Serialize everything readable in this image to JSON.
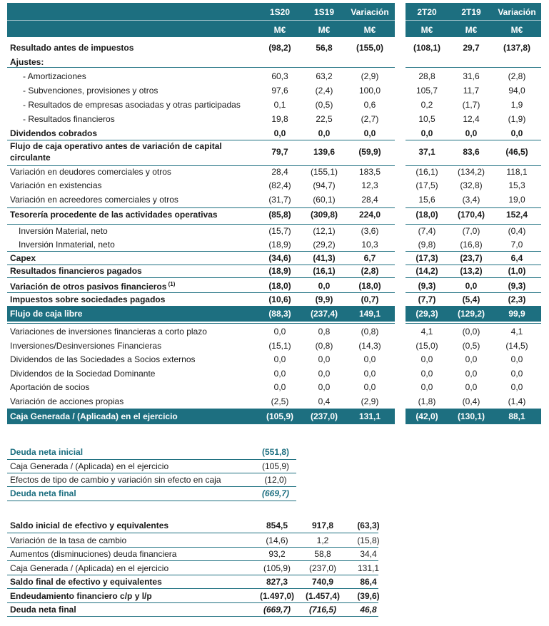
{
  "header": {
    "left_cols": [
      "1S20",
      "1S19",
      "Variación"
    ],
    "right_cols": [
      "2T20",
      "2T19",
      "Variación"
    ],
    "unit": "M€"
  },
  "main_rows": [
    {
      "label": "Resultado antes de impuestos",
      "bold": true,
      "v": [
        "(98,2)",
        "56,8",
        "(155,0)",
        "(108,1)",
        "29,7",
        "(137,8)"
      ]
    },
    {
      "label": "Ajustes:",
      "bold": true,
      "v": [
        "",
        "",
        "",
        "",
        "",
        ""
      ]
    },
    {
      "label": "- Amortizaciones",
      "v": [
        "60,3",
        "63,2",
        "(2,9)",
        "28,8",
        "31,6",
        "(2,8)"
      ]
    },
    {
      "label": "- Subvenciones, provisiones y otros",
      "v": [
        "97,6",
        "(2,4)",
        "100,0",
        "105,7",
        "11,7",
        "94,0"
      ]
    },
    {
      "label": "- Resultados de empresas asociadas y otras participadas",
      "v": [
        "0,1",
        "(0,5)",
        "0,6",
        "0,2",
        "(1,7)",
        "1,9"
      ]
    },
    {
      "label": "- Resultados financieros",
      "v": [
        "19,8",
        "22,5",
        "(2,7)",
        "10,5",
        "12,4",
        "(1,9)"
      ]
    },
    {
      "label": "Dividendos cobrados",
      "bold": true,
      "v": [
        "0,0",
        "0,0",
        "0,0",
        "0,0",
        "0,0",
        "0,0"
      ]
    },
    {
      "label": "Flujo de caja operativo antes de variación de capital",
      "label2": "circulante",
      "bold": true,
      "v": [
        "79,7",
        "139,6",
        "(59,9)",
        "37,1",
        "83,6",
        "(46,5)"
      ]
    },
    {
      "label": "Variación en deudores comerciales y otros",
      "v": [
        "28,4",
        "(155,1)",
        "183,5",
        "(16,1)",
        "(134,2)",
        "118,1"
      ]
    },
    {
      "label": "Variación en existencias",
      "v": [
        "(82,4)",
        "(94,7)",
        "12,3",
        "(17,5)",
        "(32,8)",
        "15,3"
      ]
    },
    {
      "label": "Variación en acreedores comerciales y otros",
      "v": [
        "(31,7)",
        "(60,1)",
        "28,4",
        "15,6",
        "(3,4)",
        "19,0"
      ]
    },
    {
      "label": "Tesorería procedente de las actividades operativas",
      "bold": true,
      "v": [
        "(85,8)",
        "(309,8)",
        "224,0",
        "(18,0)",
        "(170,4)",
        "152,4"
      ]
    },
    {
      "label": "Inversión Material, neto",
      "v": [
        "(15,7)",
        "(12,1)",
        "(3,6)",
        "(7,4)",
        "(7,0)",
        "(0,4)"
      ]
    },
    {
      "label": "Inversión Inmaterial, neto",
      "v": [
        "(18,9)",
        "(29,2)",
        "10,3",
        "(9,8)",
        "(16,8)",
        "7,0"
      ]
    },
    {
      "label": "Capex",
      "bold": true,
      "v": [
        "(34,6)",
        "(41,3)",
        "6,7",
        "(17,3)",
        "(23,7)",
        "6,4"
      ]
    },
    {
      "label": "Resultados financieros pagados",
      "bold": true,
      "v": [
        "(18,9)",
        "(16,1)",
        "(2,8)",
        "(14,2)",
        "(13,2)",
        "(1,0)"
      ]
    },
    {
      "label": "Variación de otros pasivos financieros",
      "sup": "(1)",
      "bold": true,
      "v": [
        "(18,0)",
        "0,0",
        "(18,0)",
        "(9,3)",
        "0,0",
        "(9,3)"
      ]
    },
    {
      "label": "Impuestos sobre sociedades pagados",
      "bold": true,
      "v": [
        "(10,6)",
        "(9,9)",
        "(0,7)",
        "(7,7)",
        "(5,4)",
        "(2,3)"
      ]
    },
    {
      "label": "Flujo de caja libre",
      "bold": true,
      "v": [
        "(88,3)",
        "(237,4)",
        "149,1",
        "(29,3)",
        "(129,2)",
        "99,9"
      ]
    },
    {
      "label": "Variaciones de inversiones financieras a corto plazo",
      "v": [
        "0,0",
        "0,8",
        "(0,8)",
        "4,1",
        "(0,0)",
        "4,1"
      ]
    },
    {
      "label": "Inversiones/Desinversiones Financieras",
      "v": [
        "(15,1)",
        "(0,8)",
        "(14,3)",
        "(15,0)",
        "(0,5)",
        "(14,5)"
      ]
    },
    {
      "label": "Dividendos de las Sociedades a Socios externos",
      "v": [
        "0,0",
        "0,0",
        "0,0",
        "0,0",
        "0,0",
        "0,0"
      ]
    },
    {
      "label": "Dividendos de la Sociedad Dominante",
      "v": [
        "0,0",
        "0,0",
        "0,0",
        "0,0",
        "0,0",
        "0,0"
      ]
    },
    {
      "label": "Aportación de socios",
      "v": [
        "0,0",
        "0,0",
        "0,0",
        "0,0",
        "0,0",
        "0,0"
      ]
    },
    {
      "label": "Variación de acciones propias",
      "v": [
        "(2,5)",
        "0,4",
        "(2,9)",
        "(1,8)",
        "(0,4)",
        "(1,4)"
      ]
    },
    {
      "label": "Caja Generada / (Aplicada) en el ejercicio",
      "bold": true,
      "v": [
        "(105,9)",
        "(237,0)",
        "131,1",
        "(42,0)",
        "(130,1)",
        "88,1"
      ]
    }
  ],
  "debt_rows": [
    {
      "label": "Deuda neta inicial",
      "value": "(551,8)"
    },
    {
      "label": "Caja Generada / (Aplicada) en el ejercicio",
      "value": "(105,9)"
    },
    {
      "label": "Efectos de tipo de cambio y variación sin efecto en caja",
      "value": "(12,0)"
    },
    {
      "label": "Deuda neta final",
      "value": "(669,7)"
    }
  ],
  "cash_rows": [
    {
      "label": "Saldo inicial de efectivo y equivalentes",
      "v": [
        "854,5",
        "917,8",
        "(63,3)"
      ]
    },
    {
      "label": "Variación de la tasa de cambio",
      "v": [
        "(14,6)",
        "1,2",
        "(15,8)"
      ]
    },
    {
      "label": "Aumentos (disminuciones) deuda financiera",
      "v": [
        "93,2",
        "58,8",
        "34,4"
      ]
    },
    {
      "label": "Caja Generada / (Aplicada) en el ejercicio",
      "v": [
        "(105,9)",
        "(237,0)",
        "131,1"
      ]
    },
    {
      "label": "Saldo final de efectivo y equivalentes",
      "v": [
        "827,3",
        "740,9",
        "86,4"
      ]
    },
    {
      "label": "Endeudamiento financiero c/p y l/p",
      "v": [
        "(1.497,0)",
        "(1.457,4)",
        "(39,6)"
      ]
    },
    {
      "label": "Deuda neta final",
      "v": [
        "(669,7)",
        "(716,5)",
        "46,8"
      ]
    }
  ],
  "colors": {
    "accent": "#1d6f80"
  }
}
